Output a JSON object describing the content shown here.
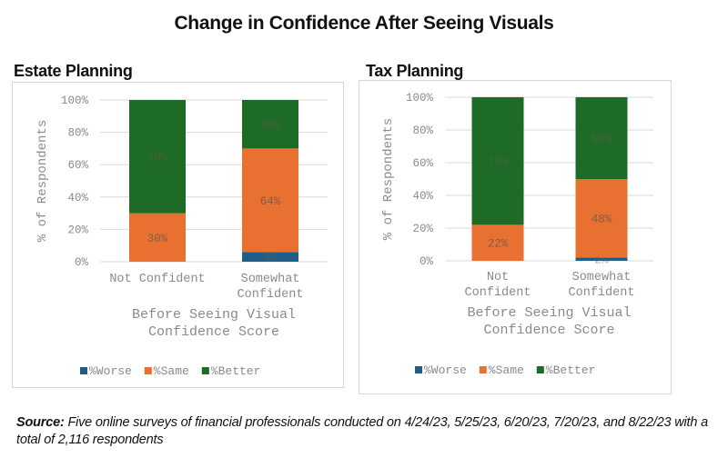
{
  "title": "Change in Confidence After Seeing Visuals",
  "source": {
    "label": "Source:",
    "text": "Five online surveys of financial professionals conducted on 4/24/23, 5/25/23, 6/20/23, 7/20/23, and 8/22/23 with a total of 2,116 respondents"
  },
  "colors": {
    "worse": "#1f5f87",
    "same": "#e87030",
    "better": "#1d6b27",
    "grid": "#d9d9d9",
    "axis_text": "#8a8a8a",
    "label_text": "#6b5a4a"
  },
  "chart_data": [
    {
      "type": "bar",
      "stacked": true,
      "title": "Estate Planning",
      "categories": [
        "Not Confident",
        "Somewhat Confident"
      ],
      "category_lines": [
        [
          "Not Confident"
        ],
        [
          "Somewhat",
          "Confident"
        ]
      ],
      "xlabel": "Before Seeing Visual Confidence Score",
      "xlabel_lines": [
        "Before Seeing Visual",
        "Confidence Score"
      ],
      "ylabel": "% of Respondents",
      "ylim": [
        0,
        100
      ],
      "yticks": [
        "0%",
        "20%",
        "40%",
        "60%",
        "80%",
        "100%"
      ],
      "grid": true,
      "legend": "bottom",
      "series": [
        {
          "name": "%Worse",
          "key": "worse",
          "values": [
            0,
            6
          ],
          "labels": [
            "",
            "6%"
          ]
        },
        {
          "name": "%Same",
          "key": "same",
          "values": [
            30,
            64
          ],
          "labels": [
            "30%",
            "64%"
          ]
        },
        {
          "name": "%Better",
          "key": "better",
          "values": [
            70,
            30
          ],
          "labels": [
            "70%",
            "30%"
          ]
        }
      ]
    },
    {
      "type": "bar",
      "stacked": true,
      "title": "Tax Planning",
      "categories": [
        "Not Confident",
        "Somewhat Confident"
      ],
      "category_lines": [
        [
          "Not",
          "Confident"
        ],
        [
          "Somewhat",
          "Confident"
        ]
      ],
      "xlabel": "Before Seeing Visual Confidence Score",
      "xlabel_lines": [
        "Before Seeing Visual",
        "Confidence Score"
      ],
      "ylabel": "% of Respondents",
      "ylim": [
        0,
        100
      ],
      "yticks": [
        "0%",
        "20%",
        "40%",
        "60%",
        "80%",
        "100%"
      ],
      "grid": true,
      "legend": "bottom",
      "series": [
        {
          "name": "%Worse",
          "key": "worse",
          "values": [
            0,
            2
          ],
          "labels": [
            "",
            "2%"
          ]
        },
        {
          "name": "%Same",
          "key": "same",
          "values": [
            22,
            48
          ],
          "labels": [
            "22%",
            "48%"
          ]
        },
        {
          "name": "%Better",
          "key": "better",
          "values": [
            78,
            50
          ],
          "labels": [
            "78%",
            "50%"
          ]
        }
      ]
    }
  ]
}
